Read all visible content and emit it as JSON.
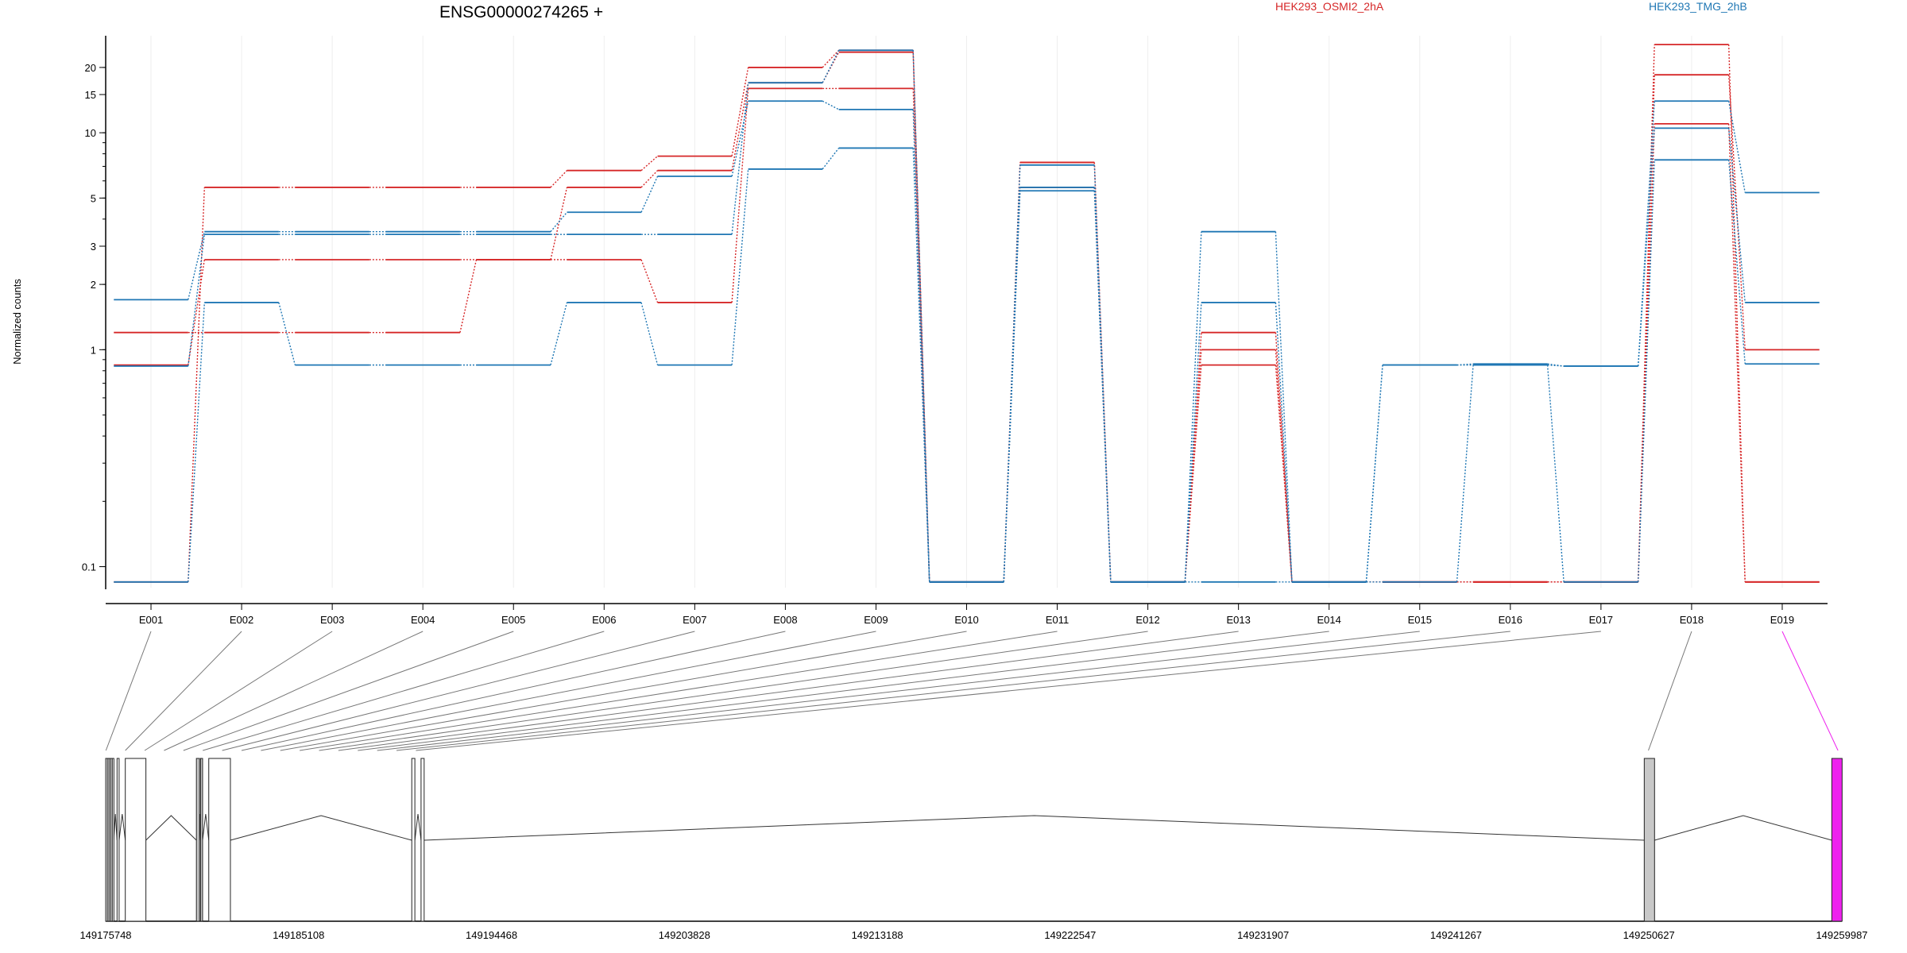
{
  "chart_data": {
    "type": "line",
    "title": "ENSG00000274265 +",
    "ylabel": "Normalized counts",
    "yscale": "log",
    "ylim": [
      0.08,
      28
    ],
    "yticks": [
      "0.1",
      "1",
      "2",
      "3",
      "5",
      "10",
      "15",
      "20"
    ],
    "categories": [
      "E001",
      "E002",
      "E003",
      "E004",
      "E005",
      "E006",
      "E007",
      "E008",
      "E009",
      "E010",
      "E011",
      "E012",
      "E013",
      "E014",
      "E015",
      "E016",
      "E017",
      "E018",
      "E019"
    ],
    "legend": [
      {
        "label": "HEK293_OSMI2_2hA",
        "color": "#d62728"
      },
      {
        "label": "HEK293_TMG_2hB",
        "color": "#1f77b4"
      }
    ],
    "series": [
      {
        "color": "#d62728",
        "values": [
          0.085,
          5.6,
          5.6,
          5.6,
          5.6,
          6.7,
          7.8,
          20,
          24,
          0.085,
          7.3,
          0.085,
          0.85,
          0.085,
          0.085,
          0.085,
          0.085,
          25.5,
          0.085
        ]
      },
      {
        "color": "#d62728",
        "values": [
          0.85,
          2.6,
          2.6,
          2.6,
          2.6,
          5.6,
          6.7,
          17,
          23.5,
          0.085,
          7.3,
          0.085,
          1.2,
          0.085,
          0.085,
          0.085,
          0.085,
          18.5,
          1.0
        ]
      },
      {
        "color": "#d62728",
        "values": [
          1.2,
          1.2,
          1.2,
          1.2,
          2.6,
          2.6,
          1.65,
          16,
          16,
          0.085,
          5.6,
          0.085,
          1.0,
          0.085,
          0.085,
          0.085,
          0.085,
          11,
          0.085
        ]
      },
      {
        "color": "#1f77b4",
        "values": [
          1.7,
          3.5,
          3.5,
          3.5,
          3.5,
          4.3,
          6.3,
          14,
          12.8,
          0.085,
          7.1,
          0.085,
          3.5,
          0.085,
          0.85,
          0.86,
          0.84,
          14,
          5.3
        ]
      },
      {
        "color": "#1f77b4",
        "values": [
          0.84,
          3.4,
          3.4,
          3.4,
          3.4,
          3.4,
          3.4,
          17,
          24,
          0.085,
          5.4,
          0.085,
          1.65,
          0.085,
          0.85,
          0.85,
          0.84,
          10.5,
          1.65
        ]
      },
      {
        "color": "#1f77b4",
        "values": [
          0.085,
          1.65,
          0.85,
          0.85,
          0.85,
          1.65,
          0.85,
          6.8,
          8.5,
          0.085,
          5.6,
          0.085,
          0.085,
          0.085,
          0.085,
          0.85,
          0.085,
          7.5,
          0.86
        ]
      }
    ],
    "genome_axis_ticks": [
      "149175748",
      "149185108",
      "149194468",
      "149203828",
      "149213188",
      "149222547",
      "149231907",
      "149241267",
      "149250627",
      "149259987"
    ],
    "exon_coords": [
      [
        149175748,
        149175820
      ],
      [
        149175830,
        149175900
      ],
      [
        149175910,
        149175980
      ],
      [
        149175990,
        149176060
      ],
      [
        149176070,
        149176140
      ],
      [
        149176300,
        149176400
      ],
      [
        149176700,
        149177700
      ],
      [
        149180150,
        149180300
      ],
      [
        149180350,
        149180450
      ],
      [
        149180750,
        149181800
      ],
      [
        149190600,
        149190750
      ],
      [
        149191050,
        149191200
      ],
      [
        149250400,
        149250900
      ],
      [
        149259500,
        149260000
      ]
    ],
    "highlight_exon_color": "#ee22ee"
  }
}
